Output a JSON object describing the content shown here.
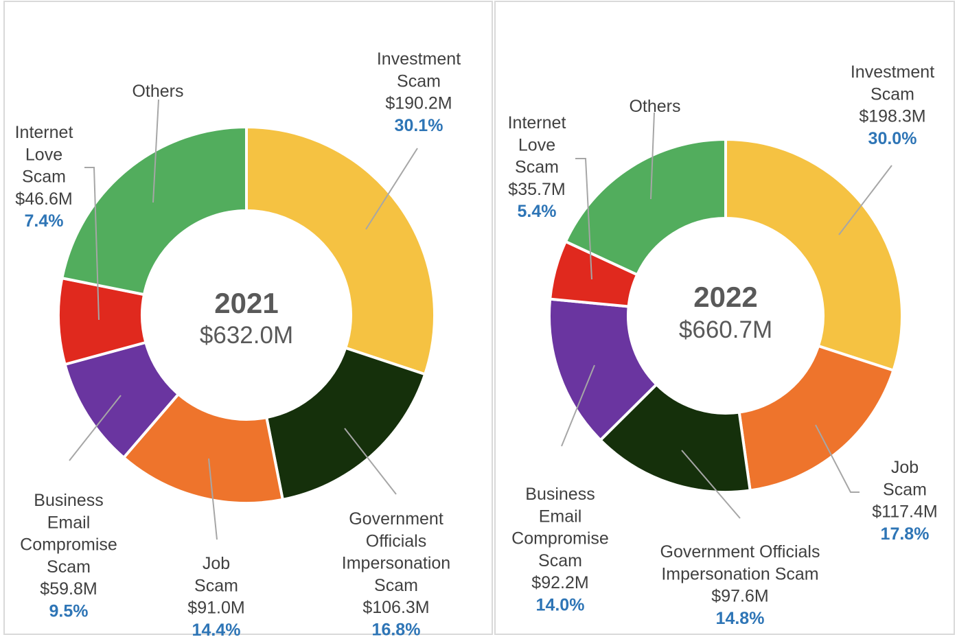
{
  "colors": {
    "investment": "#f5c242",
    "government": "#15300b",
    "job": "#ee742c",
    "business_email": "#6a35a0",
    "internet_love": "#e0291e",
    "others": "#52ad5d",
    "label_text": "#404040",
    "percent_text": "#2e75b6",
    "center_text": "#595959"
  },
  "chart_data": [
    {
      "type": "pie",
      "center_year": "2021",
      "center_total": "$632.0M",
      "slices": [
        {
          "key": "investment",
          "label_lines": [
            "Investment",
            "Scam"
          ],
          "amount": "$190.2M",
          "value": 190.2,
          "percent": "30.1%",
          "color": "#f5c242"
        },
        {
          "key": "government",
          "label_lines": [
            "Government",
            "Officials",
            "Impersonation",
            "Scam"
          ],
          "amount": "$106.3M",
          "value": 106.3,
          "percent": "16.8%",
          "color": "#15300b"
        },
        {
          "key": "job",
          "label_lines": [
            "Job",
            "Scam"
          ],
          "amount": "$91.0M",
          "value": 91.0,
          "percent": "14.4%",
          "color": "#ee742c"
        },
        {
          "key": "business_email",
          "label_lines": [
            "Business",
            "Email",
            "Compromise",
            "Scam"
          ],
          "amount": "$59.8M",
          "value": 59.8,
          "percent": "9.5%",
          "color": "#6a35a0"
        },
        {
          "key": "internet_love",
          "label_lines": [
            "Internet",
            "Love",
            "Scam"
          ],
          "amount": "$46.6M",
          "value": 46.6,
          "percent": "7.4%",
          "color": "#e0291e"
        },
        {
          "key": "others",
          "label_lines": [
            "Others"
          ],
          "amount": "",
          "value": 138.1,
          "percent": "",
          "color": "#52ad5d"
        }
      ]
    },
    {
      "type": "pie",
      "center_year": "2022",
      "center_total": "$660.7M",
      "slices": [
        {
          "key": "investment",
          "label_lines": [
            "Investment",
            "Scam"
          ],
          "amount": "$198.3M",
          "value": 198.3,
          "percent": "30.0%",
          "color": "#f5c242"
        },
        {
          "key": "job",
          "label_lines": [
            "Job",
            "Scam"
          ],
          "amount": "$117.4M",
          "value": 117.4,
          "percent": "17.8%",
          "color": "#ee742c"
        },
        {
          "key": "government",
          "label_lines": [
            "Government Officials",
            "Impersonation Scam"
          ],
          "amount": "$97.6M",
          "value": 97.6,
          "percent": "14.8%",
          "color": "#15300b"
        },
        {
          "key": "business_email",
          "label_lines": [
            "Business",
            "Email",
            "Compromise",
            "Scam"
          ],
          "amount": "$92.2M",
          "value": 92.2,
          "percent": "14.0%",
          "color": "#6a35a0"
        },
        {
          "key": "internet_love",
          "label_lines": [
            "Internet",
            "Love",
            "Scam"
          ],
          "amount": "$35.7M",
          "value": 35.7,
          "percent": "5.4%",
          "color": "#e0291e"
        },
        {
          "key": "others",
          "label_lines": [
            "Others"
          ],
          "amount": "",
          "value": 119.5,
          "percent": "",
          "color": "#52ad5d"
        }
      ]
    }
  ]
}
